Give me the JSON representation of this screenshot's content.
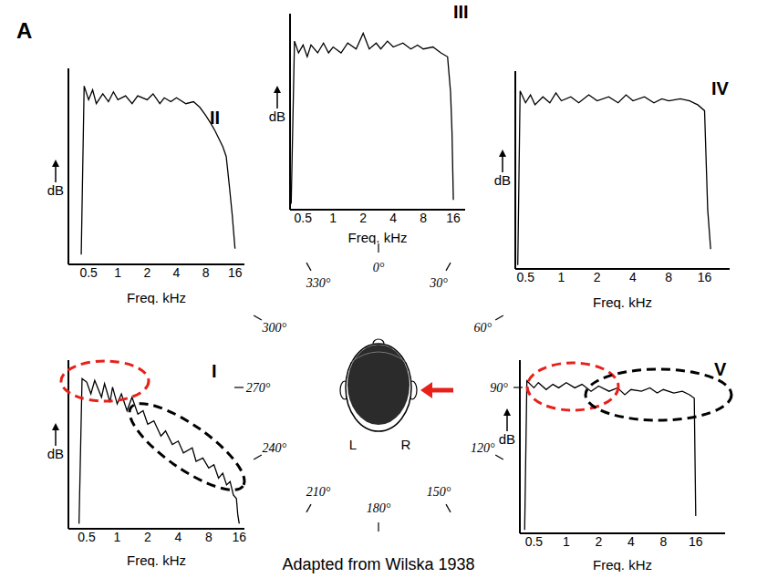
{
  "panel_label": "A",
  "caption": "Adapted from Wilska 1938",
  "head": {
    "left": "L",
    "right": "R"
  },
  "angles": [
    {
      "value": 0,
      "label": "0°"
    },
    {
      "value": 30,
      "label": "30°"
    },
    {
      "value": 60,
      "label": "60°"
    },
    {
      "value": 90,
      "label": "90°"
    },
    {
      "value": 120,
      "label": "120°"
    },
    {
      "value": 150,
      "label": "150°"
    },
    {
      "value": 180,
      "label": "180°"
    },
    {
      "value": 210,
      "label": "210°"
    },
    {
      "value": 240,
      "label": "240°"
    },
    {
      "value": 270,
      "label": "270°"
    },
    {
      "value": 300,
      "label": "300°"
    },
    {
      "value": 330,
      "label": "330°"
    }
  ],
  "chart_data": [
    {
      "type": "line",
      "title": "I",
      "x_label": "Freq. kHz",
      "y_label": "dB",
      "log": "x",
      "x": [
        0.42,
        0.45,
        0.5,
        0.55,
        0.6,
        0.7,
        0.75,
        0.85,
        0.9,
        1,
        1.1,
        1.25,
        1.4,
        1.6,
        1.8,
        2,
        2.3,
        2.7,
        3,
        3.5,
        4,
        4.5,
        5.5,
        6,
        7,
        8,
        9,
        10,
        11,
        12,
        13,
        14,
        15,
        15.5,
        16
      ],
      "values": [
        3,
        89,
        87,
        80,
        88,
        78,
        86,
        75,
        84,
        74,
        80,
        70,
        78,
        68,
        70,
        62,
        64,
        55,
        58,
        50,
        52,
        45,
        48,
        40,
        42,
        36,
        38,
        30,
        33,
        26,
        28,
        20,
        18,
        8,
        3
      ],
      "color": "#000000",
      "xlim": [
        0.33,
        18
      ],
      "xticks": [
        0.5,
        1,
        2,
        4,
        8,
        16
      ],
      "ylim": [
        0,
        100
      ],
      "grid": false,
      "tick_labels": "x"
    },
    {
      "type": "line",
      "title": "II",
      "x_label": "Freq. kHz",
      "y_label": "dB",
      "log": "x",
      "x": [
        0.42,
        0.45,
        0.5,
        0.55,
        0.6,
        0.7,
        0.8,
        0.9,
        1,
        1.2,
        1.4,
        1.6,
        2,
        2.3,
        2.7,
        3,
        3.5,
        4,
        5,
        6,
        7,
        8,
        9,
        10,
        12,
        13,
        14,
        15,
        16
      ],
      "values": [
        5,
        91,
        84,
        89,
        82,
        87,
        83,
        88,
        84,
        86,
        82,
        86,
        84,
        87,
        82,
        85,
        83,
        85,
        82,
        83,
        80,
        76,
        72,
        68,
        60,
        55,
        40,
        25,
        8
      ],
      "color": "#000000",
      "xlim": [
        0.31,
        20
      ],
      "xticks": [
        0.5,
        1,
        2,
        4,
        8,
        16
      ],
      "ylim": [
        0,
        100
      ],
      "grid": false,
      "tick_labels": "x"
    },
    {
      "type": "line",
      "title": "III",
      "x_label": "Freq. kHz",
      "y_label": "dB",
      "log": "x",
      "x": [
        0.38,
        0.41,
        0.45,
        0.5,
        0.55,
        0.6,
        0.7,
        0.8,
        0.9,
        1,
        1.2,
        1.4,
        1.7,
        2,
        2.3,
        2.7,
        3,
        3.5,
        4,
        5,
        6,
        7,
        8,
        10,
        12,
        14,
        15,
        15.5,
        16
      ],
      "values": [
        3,
        86,
        80,
        84,
        78,
        84,
        80,
        85,
        80,
        83,
        80,
        85,
        82,
        90,
        82,
        85,
        82,
        86,
        83,
        85,
        82,
        84,
        82,
        83,
        80,
        78,
        60,
        40,
        5
      ],
      "color": "#000000",
      "xlim": [
        0.37,
        21
      ],
      "xticks": [
        0.5,
        1,
        2,
        4,
        8,
        16
      ],
      "ylim": [
        0,
        100
      ],
      "grid": false,
      "tick_labels": "x"
    },
    {
      "type": "line",
      "title": "IV",
      "x_label": "Freq. kHz",
      "y_label": "dB",
      "log": "x",
      "x": [
        0.43,
        0.45,
        0.5,
        0.55,
        0.6,
        0.7,
        0.8,
        0.9,
        1,
        1.2,
        1.4,
        1.7,
        2,
        2.5,
        3,
        3.5,
        4,
        5,
        6,
        7,
        8,
        10,
        12,
        14,
        16,
        17,
        18
      ],
      "values": [
        2,
        90,
        84,
        88,
        83,
        87,
        84,
        89,
        85,
        87,
        84,
        88,
        85,
        87,
        84,
        88,
        85,
        87,
        84,
        86,
        85,
        86,
        85,
        83,
        80,
        30,
        10
      ],
      "color": "#000000",
      "xlim": [
        0.41,
        26
      ],
      "xticks": [
        0.5,
        1,
        2,
        4,
        8,
        16
      ],
      "ylim": [
        0,
        100
      ],
      "grid": false,
      "tick_labels": "x"
    },
    {
      "type": "line",
      "title": "V",
      "x_label": "Freq. kHz",
      "y_label": "dB",
      "log": "x",
      "x": [
        0.41,
        0.43,
        0.5,
        0.55,
        0.65,
        0.75,
        0.85,
        1,
        1.2,
        1.4,
        1.7,
        2,
        2.5,
        3,
        3.5,
        4,
        5,
        6,
        7,
        8,
        10,
        12,
        14,
        15.5,
        16
      ],
      "values": [
        2,
        88,
        84,
        87,
        83,
        86,
        84,
        87,
        84,
        86,
        82,
        85,
        82,
        84,
        80,
        83,
        82,
        84,
        81,
        83,
        81,
        82,
        80,
        78,
        10
      ],
      "color": "#000000",
      "xlim": [
        0.37,
        30
      ],
      "xticks": [
        0.5,
        1,
        2,
        4,
        8,
        16
      ],
      "ylim": [
        0,
        100
      ],
      "grid": false,
      "tick_labels": "x"
    }
  ]
}
